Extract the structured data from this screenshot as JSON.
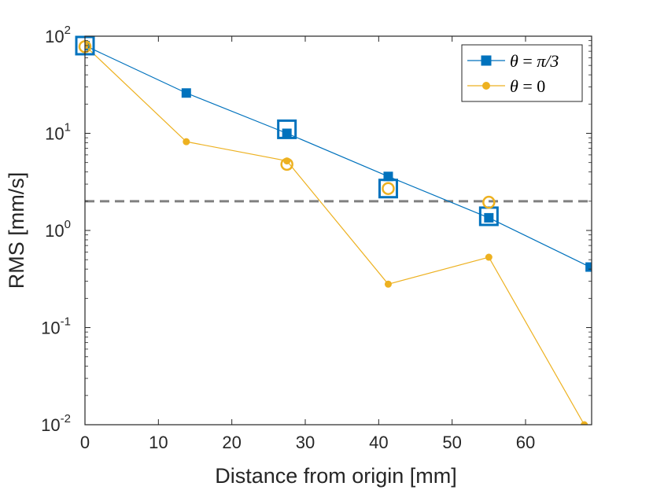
{
  "chart_data": {
    "type": "line",
    "xlabel": "Distance from origin [mm]",
    "ylabel": "RMS [mm/s]",
    "yscale": "log",
    "xlim": [
      0,
      69
    ],
    "ylim": [
      0.01,
      100
    ],
    "xticks": [
      "0",
      "10",
      "20",
      "30",
      "40",
      "50",
      "60"
    ],
    "xtick_values": [
      0,
      10,
      20,
      30,
      40,
      50,
      60
    ],
    "yticks": [
      {
        "base": "10",
        "exp": "-2",
        "value": 0.01
      },
      {
        "base": "10",
        "exp": "-1",
        "value": 0.1
      },
      {
        "base": "10",
        "exp": "0",
        "value": 1
      },
      {
        "base": "10",
        "exp": "1",
        "value": 10
      },
      {
        "base": "10",
        "exp": "2",
        "value": 100
      }
    ],
    "series": [
      {
        "name": "θ = π/3",
        "color": "#0072BD",
        "marker": "square",
        "x": [
          0,
          13.8,
          27.5,
          41.3,
          55,
          68.8
        ],
        "y": [
          80,
          26,
          10,
          3.6,
          1.35,
          0.42
        ]
      },
      {
        "name": "θ = 0",
        "color": "#EDB120",
        "marker": "circle",
        "x": [
          0,
          13.8,
          27.5,
          41.3,
          55,
          68
        ],
        "y": [
          80,
          8.2,
          5.2,
          0.28,
          0.53,
          0.01
        ]
      }
    ],
    "highlight_markers": [
      {
        "series": "θ = π/3",
        "shape": "square",
        "color": "#0072BD",
        "x": [
          0,
          27.5,
          41.3,
          55
        ],
        "y": [
          80,
          11,
          2.7,
          1.4
        ]
      },
      {
        "series": "θ = 0",
        "shape": "circle",
        "color": "#EDB120",
        "x": [
          0,
          27.5,
          41.3,
          55
        ],
        "y": [
          78,
          4.8,
          2.7,
          1.95
        ]
      }
    ],
    "threshold": {
      "y": 2,
      "color": "#808080",
      "style": "dashed"
    },
    "legend": {
      "position": "top-right",
      "entries": [
        {
          "theta": "θ",
          "eq": " = ",
          "val": "π/3"
        },
        {
          "theta": "θ",
          "eq": " = ",
          "val": "0"
        }
      ]
    }
  }
}
